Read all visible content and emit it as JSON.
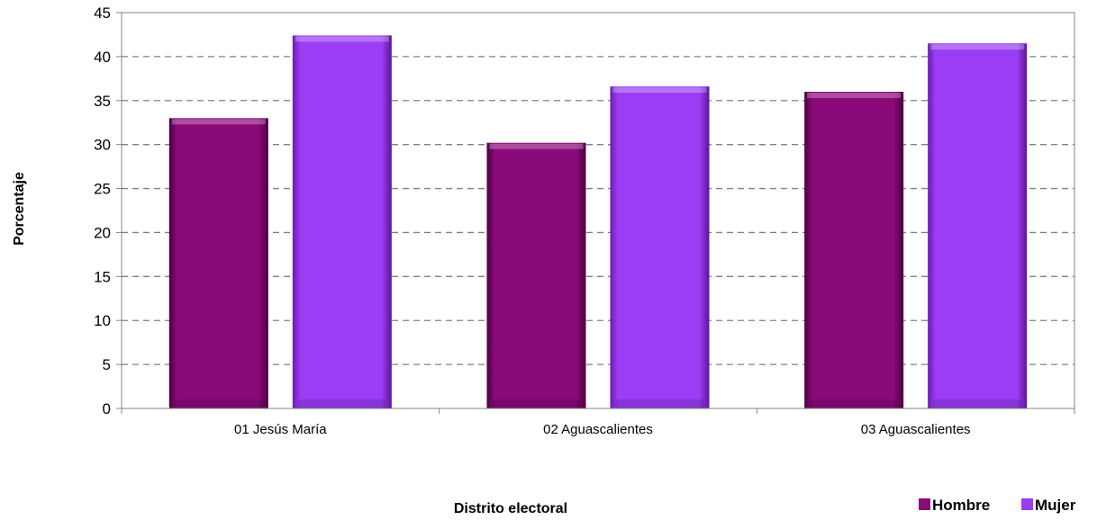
{
  "chart_data": {
    "type": "bar",
    "title": "",
    "xlabel": "Distrito electoral",
    "ylabel": "Porcentaje",
    "ylim": [
      0,
      45
    ],
    "yticks": [
      0,
      5,
      10,
      15,
      20,
      25,
      30,
      35,
      40,
      45
    ],
    "grid": true,
    "legend_position": "bottom-right",
    "categories": [
      "01 Jesús María",
      "02 Aguascalientes",
      "03 Aguascalientes"
    ],
    "series": [
      {
        "name": "Hombre",
        "color": "#8B0A7A",
        "values": [
          33.0,
          30.2,
          36.0
        ]
      },
      {
        "name": "Mujer",
        "color": "#9B3DF5",
        "values": [
          42.4,
          36.6,
          41.5
        ]
      }
    ]
  }
}
